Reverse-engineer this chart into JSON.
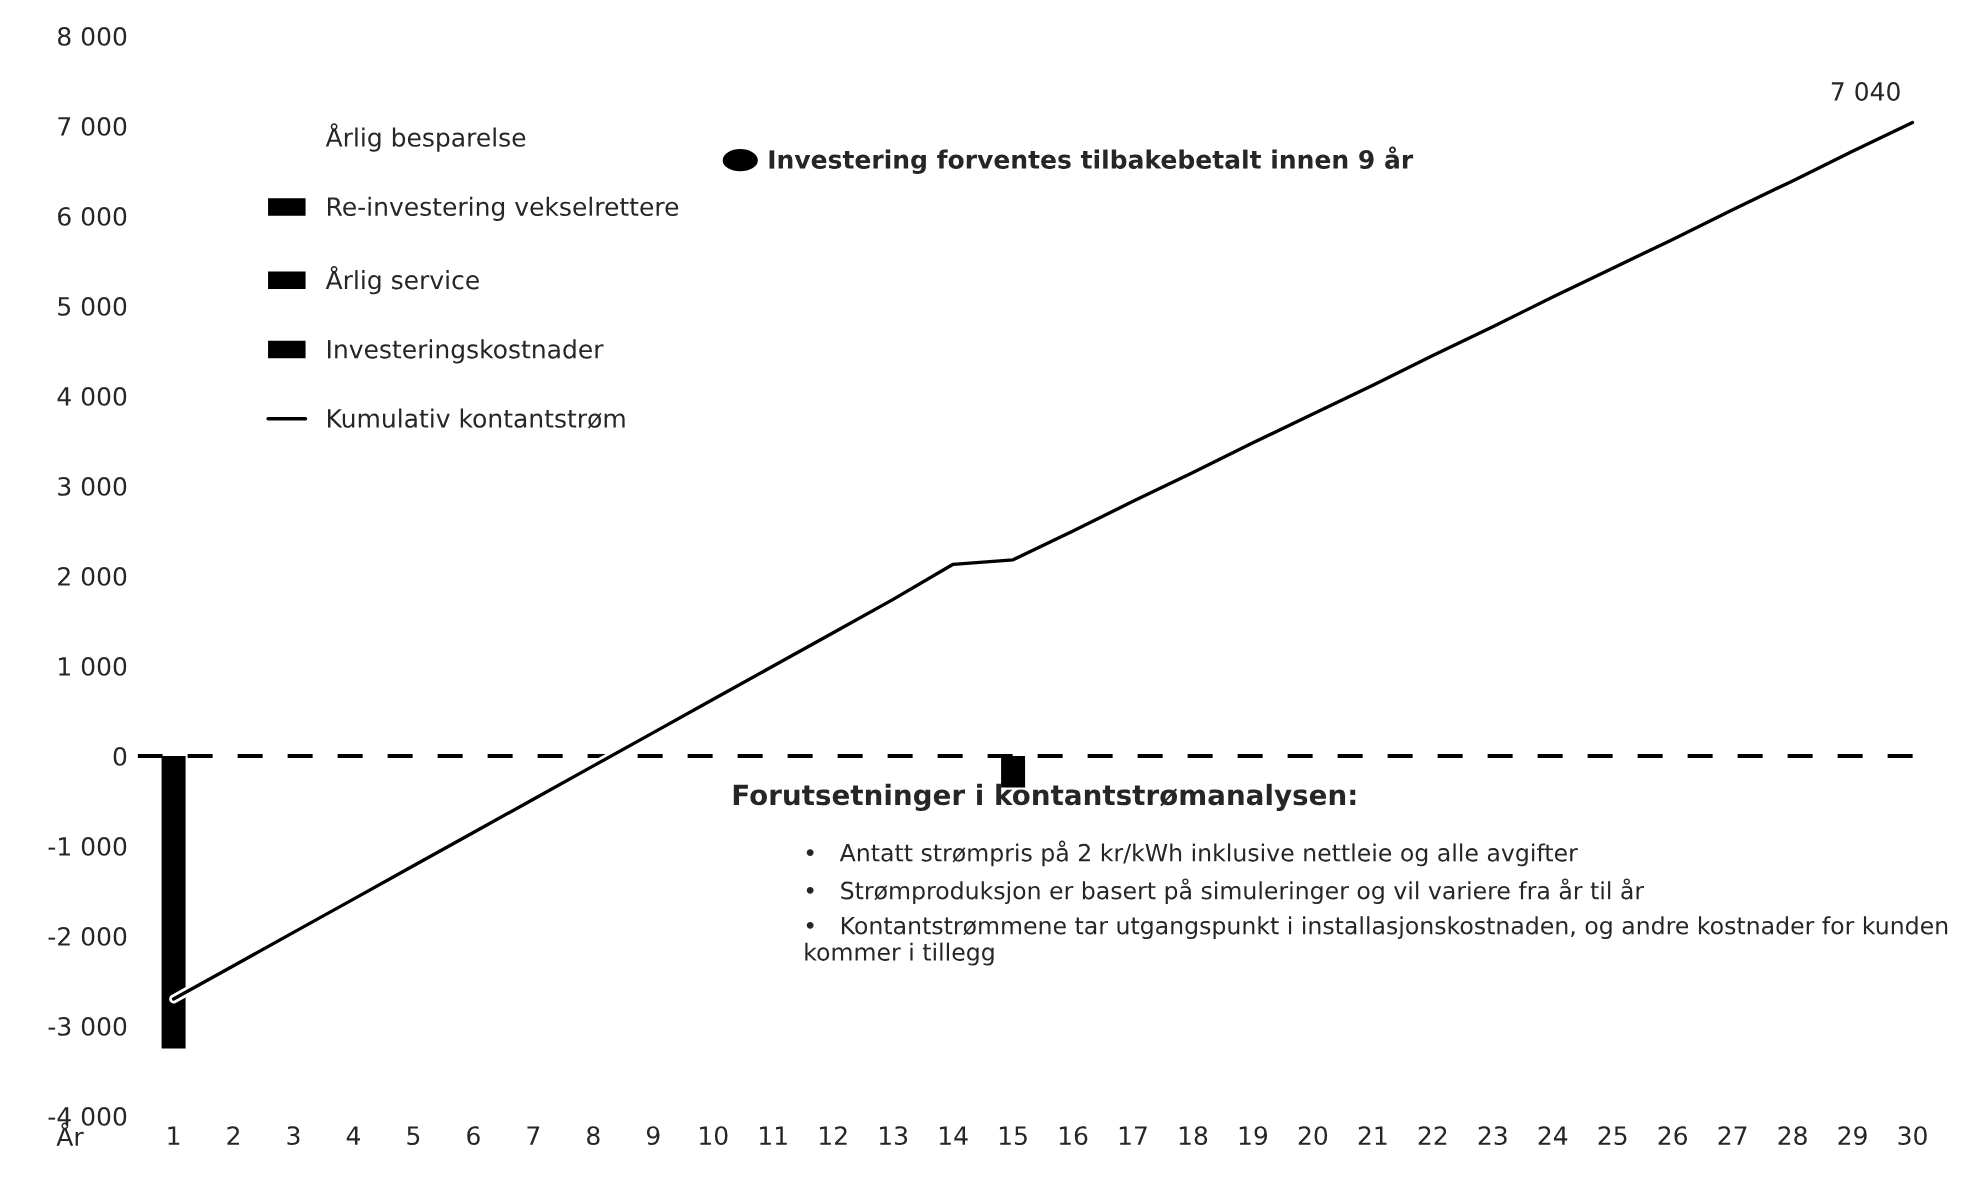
{
  "chart_data": {
    "type": "bar",
    "categories": [
      "1",
      "2",
      "3",
      "4",
      "5",
      "6",
      "7",
      "8",
      "9",
      "10",
      "11",
      "12",
      "13",
      "14",
      "15",
      "16",
      "17",
      "18",
      "19",
      "20",
      "21",
      "22",
      "23",
      "24",
      "25",
      "26",
      "27",
      "28",
      "29",
      "30"
    ],
    "xlabel": "År",
    "series": [
      {
        "name": "Årlig besparelse",
        "values": [
          null,
          null,
          null,
          null,
          null,
          null,
          null,
          null,
          null,
          null,
          null,
          null,
          null,
          null,
          null,
          null,
          null,
          null,
          null,
          null,
          null,
          null,
          null,
          null,
          null,
          null,
          null,
          null,
          null,
          null
        ]
      },
      {
        "name": "Re-investering vekselrettere",
        "color": "#000000",
        "values": [
          null,
          null,
          null,
          null,
          null,
          null,
          null,
          null,
          null,
          null,
          null,
          null,
          null,
          null,
          -350,
          null,
          null,
          null,
          null,
          null,
          null,
          null,
          null,
          null,
          null,
          null,
          null,
          null,
          null,
          null
        ]
      },
      {
        "name": "Årlig service",
        "color": "#000000",
        "values": [
          null,
          null,
          null,
          null,
          null,
          null,
          null,
          null,
          null,
          null,
          null,
          null,
          null,
          null,
          null,
          null,
          null,
          null,
          null,
          null,
          null,
          null,
          null,
          null,
          null,
          null,
          null,
          null,
          null,
          null
        ]
      },
      {
        "name": "Investeringskostnader",
        "color": "#000000",
        "values": [
          -3250,
          null,
          null,
          null,
          null,
          null,
          null,
          null,
          null,
          null,
          null,
          null,
          null,
          null,
          null,
          null,
          null,
          null,
          null,
          null,
          null,
          null,
          null,
          null,
          null,
          null,
          null,
          null,
          null,
          null
        ]
      },
      {
        "name": "Kumulativ kontantstrøm",
        "type": "line",
        "color": "#000000",
        "values": [
          -2700,
          -2330,
          -1960,
          -1590,
          -1220,
          -850,
          -480,
          -110,
          260,
          630,
          1000,
          1370,
          1740,
          2130,
          2180,
          2500,
          2830,
          3150,
          3480,
          3800,
          4120,
          4450,
          4770,
          5100,
          5420,
          5740,
          6070,
          6390,
          6720,
          7040
        ],
        "value_labels": [
          null,
          null,
          null,
          null,
          null,
          null,
          null,
          null,
          null,
          null,
          null,
          null,
          null,
          null,
          null,
          null,
          null,
          null,
          null,
          null,
          null,
          null,
          null,
          null,
          null,
          null,
          null,
          null,
          null,
          "7 040"
        ]
      }
    ],
    "ylim": [
      -4000,
      8000
    ],
    "yticks": [
      {
        "value": -4000,
        "label": "-4 000"
      },
      {
        "value": -3000,
        "label": "-3 000"
      },
      {
        "value": -2000,
        "label": "-2 000"
      },
      {
        "value": -1000,
        "label": "-1 000"
      },
      0,
      {
        "value": 1000,
        "label": "1 000"
      },
      {
        "value": 2000,
        "label": "2 000"
      },
      {
        "value": 3000,
        "label": "3 000"
      },
      {
        "value": 4000,
        "label": "4 000"
      },
      {
        "value": 5000,
        "label": "5 000"
      },
      {
        "value": 6000,
        "label": "6 000"
      },
      {
        "value": 7000,
        "label": "7 000"
      },
      {
        "value": 8000,
        "label": "8 000"
      }
    ],
    "ref_lines": [
      {
        "axis": "y",
        "value": 0,
        "line_style": "dashed",
        "color": "#000000"
      }
    ],
    "legend": "top left",
    "grid": false,
    "annotations": [
      "Investering forventes tilbakebetalt innen 9 år",
      "Forutsetninger i kontantstrømanalysen:",
      "•   Antatt strømpris på 2 kr/kWh inklusive nettleie og alle avgifter",
      "•   Strømproduksjon er basert på simuleringer og vil variere fra år til år",
      "•   Kontantstrømmene tar utgangspunkt i installasjonskostnaden, og andre kostnader for kunden kommer i tillegg"
    ]
  }
}
